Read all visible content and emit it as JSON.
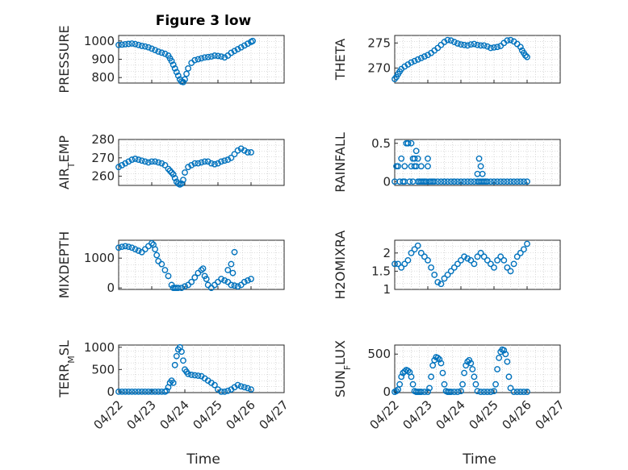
{
  "figure": {
    "title": "Figure 3 low",
    "marker_color": "#0072bd",
    "x_tick_labels": [
      "04/22",
      "04/23",
      "04/24",
      "04/25",
      "04/26",
      "04/27"
    ],
    "xlabel": "Time"
  },
  "chart_data": [
    {
      "id": "pressure",
      "type": "scatter",
      "ylabel": "PRESSURE",
      "xlim": [
        0,
        5
      ],
      "ylim": [
        770,
        1030
      ],
      "yticks": [
        800,
        900,
        1000
      ],
      "x": [
        0.0,
        0.1,
        0.2,
        0.3,
        0.4,
        0.5,
        0.6,
        0.7,
        0.8,
        0.9,
        1.0,
        1.1,
        1.2,
        1.3,
        1.4,
        1.5,
        1.55,
        1.6,
        1.65,
        1.7,
        1.75,
        1.8,
        1.85,
        1.9,
        1.95,
        2.0,
        2.05,
        2.1,
        2.2,
        2.3,
        2.4,
        2.5,
        2.6,
        2.7,
        2.8,
        2.9,
        3.0,
        3.1,
        3.2,
        3.3,
        3.4,
        3.5,
        3.6,
        3.7,
        3.8,
        3.9,
        4.0,
        4.05
      ],
      "y": [
        978,
        980,
        982,
        984,
        986,
        983,
        978,
        973,
        970,
        965,
        958,
        950,
        942,
        936,
        930,
        920,
        905,
        890,
        870,
        850,
        830,
        810,
        790,
        778,
        775,
        790,
        820,
        850,
        880,
        895,
        900,
        905,
        910,
        912,
        915,
        920,
        918,
        915,
        910,
        920,
        935,
        945,
        955,
        965,
        975,
        985,
        995,
        1000
      ]
    },
    {
      "id": "theta",
      "type": "scatter",
      "ylabel": "THETA",
      "xlim": [
        0,
        5
      ],
      "ylim": [
        267,
        276.5
      ],
      "yticks": [
        270,
        275
      ],
      "x": [
        0.0,
        0.05,
        0.1,
        0.15,
        0.2,
        0.3,
        0.4,
        0.5,
        0.6,
        0.7,
        0.8,
        0.9,
        1.0,
        1.1,
        1.2,
        1.3,
        1.4,
        1.5,
        1.6,
        1.7,
        1.8,
        1.9,
        2.0,
        2.1,
        2.2,
        2.3,
        2.4,
        2.5,
        2.6,
        2.7,
        2.8,
        2.9,
        3.0,
        3.1,
        3.2,
        3.3,
        3.4,
        3.5,
        3.6,
        3.7,
        3.8,
        3.85,
        3.9,
        3.95,
        4.0
      ],
      "y": [
        267.8,
        268.2,
        268.8,
        269.3,
        269.8,
        270.3,
        270.7,
        271.1,
        271.4,
        271.7,
        272.0,
        272.3,
        272.6,
        273.0,
        273.5,
        274.0,
        274.6,
        275.2,
        275.6,
        275.5,
        275.2,
        274.9,
        274.7,
        274.6,
        274.5,
        274.7,
        274.8,
        274.6,
        274.5,
        274.5,
        274.3,
        274.0,
        274.1,
        274.2,
        274.4,
        275.0,
        275.5,
        275.6,
        275.3,
        274.8,
        274.2,
        273.5,
        273.0,
        272.5,
        272.2
      ]
    },
    {
      "id": "air_temp",
      "type": "scatter",
      "ylabel": "AIR_TEMP",
      "xlim": [
        0,
        5
      ],
      "ylim": [
        255,
        280
      ],
      "yticks": [
        260,
        270,
        280
      ],
      "x": [
        0.0,
        0.1,
        0.2,
        0.3,
        0.4,
        0.5,
        0.6,
        0.7,
        0.8,
        0.9,
        1.0,
        1.1,
        1.2,
        1.3,
        1.4,
        1.5,
        1.55,
        1.6,
        1.65,
        1.7,
        1.75,
        1.8,
        1.85,
        1.9,
        1.95,
        2.0,
        2.1,
        2.2,
        2.3,
        2.4,
        2.5,
        2.6,
        2.7,
        2.8,
        2.9,
        3.0,
        3.1,
        3.2,
        3.3,
        3.4,
        3.5,
        3.6,
        3.7,
        3.8,
        3.9,
        4.0
      ],
      "y": [
        265,
        266,
        267,
        268,
        269,
        269.5,
        269,
        268.5,
        268,
        267.5,
        268,
        268,
        267.5,
        267,
        266,
        264,
        263,
        262,
        261,
        259,
        257,
        256,
        255.5,
        256,
        258,
        262,
        265,
        266,
        267,
        267,
        267.5,
        268,
        268,
        267,
        266.5,
        267,
        268,
        268.5,
        269,
        270,
        272,
        274,
        275,
        274,
        273,
        273
      ]
    },
    {
      "id": "rainfall",
      "type": "scatter",
      "ylabel": "RAINFALL",
      "xlim": [
        0,
        5
      ],
      "ylim": [
        -0.05,
        0.55
      ],
      "yticks": [
        0,
        0.5
      ],
      "x": [
        0.0,
        0.05,
        0.1,
        0.15,
        0.2,
        0.25,
        0.3,
        0.35,
        0.4,
        0.45,
        0.5,
        0.55,
        0.6,
        0.65,
        0.7,
        0.75,
        0.8,
        0.85,
        0.9,
        0.95,
        1.0,
        1.05,
        1.1,
        1.15,
        1.2,
        1.3,
        1.4,
        1.5,
        1.6,
        1.7,
        1.8,
        1.9,
        2.0,
        2.1,
        2.2,
        2.3,
        2.4,
        2.5,
        2.55,
        2.6,
        2.65,
        2.7,
        2.75,
        2.8,
        2.9,
        3.0,
        3.1,
        3.2,
        3.3,
        3.4,
        3.5,
        3.6,
        3.7,
        3.8,
        3.9,
        4.0,
        0.3,
        0.4,
        0.5,
        0.55,
        0.6,
        0.65,
        0.7,
        0.8,
        0.9,
        1.0,
        1.5,
        1.8,
        2.5,
        2.55,
        2.6,
        2.65
      ],
      "y": [
        0,
        0.2,
        0.2,
        0,
        0.3,
        0,
        0,
        0.5,
        0.5,
        0,
        0.5,
        0,
        0.3,
        0.4,
        0.3,
        0,
        0.2,
        0,
        0,
        0,
        0.2,
        0,
        0,
        0,
        0,
        0,
        0,
        0,
        0,
        0,
        0,
        0,
        0,
        0,
        0,
        0,
        0,
        0,
        0,
        0,
        0,
        0,
        0,
        0,
        0,
        0,
        0,
        0,
        0,
        0,
        0,
        0,
        0,
        0,
        0,
        0,
        0.2,
        0.5,
        0.2,
        0.3,
        0.2,
        0.2,
        0,
        0,
        0,
        0.3,
        0,
        0,
        0.1,
        0.3,
        0.2,
        0.1
      ]
    },
    {
      "id": "mixdepth",
      "type": "scatter",
      "ylabel": "MIXDEPTH",
      "xlim": [
        0,
        5
      ],
      "ylim": [
        -50,
        1600
      ],
      "yticks": [
        0,
        1000
      ],
      "x": [
        0.0,
        0.1,
        0.2,
        0.3,
        0.4,
        0.5,
        0.6,
        0.7,
        0.8,
        0.9,
        1.0,
        1.05,
        1.1,
        1.15,
        1.2,
        1.3,
        1.4,
        1.5,
        1.6,
        1.65,
        1.7,
        1.75,
        1.8,
        1.9,
        2.0,
        2.1,
        2.2,
        2.3,
        2.4,
        2.5,
        2.55,
        2.6,
        2.65,
        2.7,
        2.8,
        2.9,
        3.0,
        3.1,
        3.2,
        3.3,
        3.4,
        3.5,
        3.6,
        3.7,
        3.8,
        3.9,
        4.0,
        3.4,
        3.5,
        3.3,
        3.45
      ],
      "y": [
        1350,
        1380,
        1400,
        1380,
        1350,
        1300,
        1250,
        1200,
        1300,
        1400,
        1500,
        1450,
        1300,
        1100,
        900,
        800,
        600,
        400,
        100,
        0,
        0,
        0,
        0,
        0,
        50,
        100,
        200,
        350,
        500,
        600,
        650,
        400,
        300,
        100,
        0,
        100,
        200,
        300,
        250,
        200,
        100,
        80,
        50,
        100,
        200,
        250,
        300,
        800,
        1200,
        600,
        500
      ]
    },
    {
      "id": "h2omixra",
      "type": "scatter",
      "ylabel": "H2OMIXRA",
      "xlim": [
        0,
        5
      ],
      "ylim": [
        1,
        2.35
      ],
      "yticks": [
        1,
        1.5,
        2
      ],
      "x": [
        0.0,
        0.1,
        0.2,
        0.3,
        0.4,
        0.5,
        0.6,
        0.7,
        0.8,
        0.9,
        1.0,
        1.1,
        1.2,
        1.3,
        1.4,
        1.5,
        1.6,
        1.7,
        1.8,
        1.9,
        2.0,
        2.1,
        2.2,
        2.3,
        2.4,
        2.5,
        2.6,
        2.7,
        2.8,
        2.9,
        3.0,
        3.1,
        3.2,
        3.3,
        3.4,
        3.5,
        3.6,
        3.7,
        3.8,
        3.9,
        4.0
      ],
      "y": [
        1.7,
        1.7,
        1.6,
        1.7,
        1.8,
        2.0,
        2.1,
        2.2,
        2.0,
        1.9,
        1.8,
        1.6,
        1.4,
        1.2,
        1.15,
        1.3,
        1.4,
        1.5,
        1.6,
        1.7,
        1.8,
        1.9,
        1.85,
        1.8,
        1.7,
        1.9,
        2.0,
        1.9,
        1.8,
        1.7,
        1.6,
        1.8,
        1.9,
        1.8,
        1.6,
        1.5,
        1.7,
        1.9,
        2.0,
        2.1,
        2.25
      ]
    },
    {
      "id": "terr_msl",
      "type": "scatter",
      "ylabel": "TERR_MSL",
      "xlim": [
        0,
        5
      ],
      "ylim": [
        -20,
        1050
      ],
      "yticks": [
        0,
        500,
        1000
      ],
      "x": [
        0.0,
        0.1,
        0.2,
        0.3,
        0.4,
        0.5,
        0.6,
        0.7,
        0.8,
        0.9,
        1.0,
        1.1,
        1.2,
        1.3,
        1.4,
        1.45,
        1.5,
        1.55,
        1.6,
        1.65,
        1.7,
        1.75,
        1.8,
        1.85,
        1.9,
        1.95,
        2.0,
        2.05,
        2.1,
        2.2,
        2.3,
        2.4,
        2.5,
        2.6,
        2.7,
        2.8,
        2.9,
        3.0,
        3.1,
        3.2,
        3.3,
        3.4,
        3.5,
        3.6,
        3.7,
        3.8,
        3.9,
        4.0
      ],
      "y": [
        0,
        0,
        0,
        0,
        0,
        0,
        0,
        0,
        0,
        0,
        0,
        0,
        0,
        0,
        0,
        20,
        100,
        200,
        250,
        200,
        600,
        800,
        950,
        1000,
        900,
        700,
        500,
        450,
        400,
        380,
        370,
        360,
        350,
        300,
        250,
        200,
        150,
        50,
        0,
        0,
        20,
        50,
        100,
        150,
        120,
        100,
        80,
        50
      ]
    },
    {
      "id": "sun_flux",
      "type": "scatter",
      "ylabel": "SUN_FLUX",
      "xlim": [
        0,
        5
      ],
      "ylim": [
        -10,
        620
      ],
      "yticks": [
        0,
        500
      ],
      "x": [
        0.0,
        0.05,
        0.1,
        0.15,
        0.2,
        0.25,
        0.3,
        0.35,
        0.4,
        0.45,
        0.5,
        0.55,
        0.6,
        0.65,
        0.7,
        0.75,
        0.8,
        0.9,
        1.0,
        1.05,
        1.1,
        1.15,
        1.2,
        1.25,
        1.3,
        1.35,
        1.4,
        1.45,
        1.5,
        1.55,
        1.6,
        1.65,
        1.7,
        1.8,
        1.9,
        2.0,
        2.05,
        2.1,
        2.15,
        2.2,
        2.25,
        2.3,
        2.35,
        2.4,
        2.45,
        2.5,
        2.6,
        2.7,
        2.8,
        2.9,
        3.0,
        3.05,
        3.1,
        3.15,
        3.2,
        3.25,
        3.3,
        3.35,
        3.4,
        3.45,
        3.5,
        3.6,
        3.7,
        3.8,
        3.9,
        4.0
      ],
      "y": [
        0,
        10,
        30,
        100,
        200,
        250,
        270,
        290,
        280,
        260,
        200,
        100,
        10,
        0,
        0,
        0,
        0,
        0,
        0,
        50,
        200,
        350,
        420,
        460,
        450,
        430,
        380,
        250,
        100,
        10,
        0,
        0,
        0,
        0,
        0,
        10,
        100,
        250,
        350,
        400,
        420,
        380,
        300,
        200,
        100,
        10,
        0,
        0,
        0,
        0,
        10,
        100,
        300,
        450,
        530,
        560,
        550,
        500,
        400,
        200,
        50,
        0,
        0,
        0,
        0,
        0
      ]
    }
  ]
}
